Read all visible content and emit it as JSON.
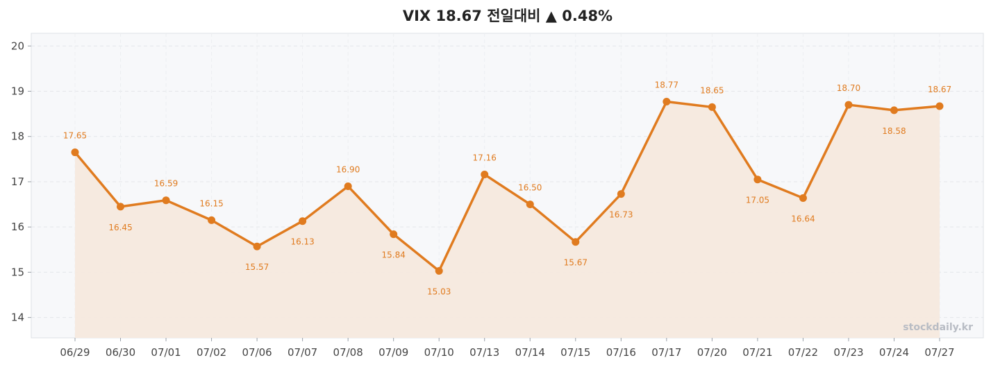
{
  "chart_data": {
    "type": "line",
    "title": "VIX 18.67 전일대비 ▲ 0.48%",
    "xlabel": "",
    "ylabel": "",
    "categories": [
      "06/29",
      "06/30",
      "07/01",
      "07/02",
      "07/06",
      "07/07",
      "07/08",
      "07/09",
      "07/10",
      "07/13",
      "07/14",
      "07/15",
      "07/16",
      "07/17",
      "07/20",
      "07/21",
      "07/22",
      "07/23",
      "07/24",
      "07/27"
    ],
    "series": [
      {
        "values": [
          17.65,
          16.45,
          16.59,
          16.15,
          15.57,
          16.13,
          16.9,
          15.84,
          15.03,
          17.16,
          16.5,
          15.67,
          16.73,
          18.77,
          18.65,
          17.05,
          16.64,
          18.7,
          18.58,
          18.67
        ],
        "labels": [
          "17.65",
          "16.45",
          "16.59",
          "16.15",
          "15.57",
          "16.13",
          "16.90",
          "15.84",
          "15.03",
          "17.16",
          "16.50",
          "15.67",
          "16.73",
          "18.77",
          "18.65",
          "17.05",
          "16.64",
          "18.70",
          "18.58",
          "18.67"
        ]
      }
    ],
    "yticks": [
      "14",
      "15",
      "16",
      "17",
      "18",
      "19",
      "20"
    ],
    "ytick_values": [
      14,
      15,
      16,
      17,
      18,
      19,
      20
    ],
    "ylim": [
      13.55,
      20.28
    ],
    "grid": true,
    "line_color": "#e07b1f",
    "fill_color": "#f5e9de",
    "plot_bg": "#f7f8fa",
    "watermark": "stockdaily.kr"
  }
}
